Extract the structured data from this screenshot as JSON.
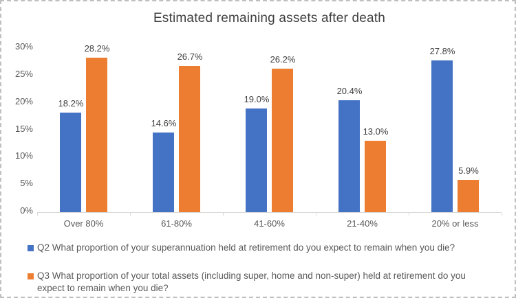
{
  "chart_data": {
    "type": "bar",
    "title": "Estimated remaining assets after death",
    "categories": [
      "Over 80%",
      "61-80%",
      "41-60%",
      "21-40%",
      "20% or less"
    ],
    "series": [
      {
        "name": "Q2 What proportion of your superannuation held at retirement do you expect to remain when you die?",
        "color": "#4472c4",
        "values": [
          18.2,
          14.6,
          19.0,
          20.4,
          27.8
        ],
        "labels": [
          "18.2%",
          "14.6%",
          "19.0%",
          "20.4%",
          "27.8%"
        ]
      },
      {
        "name": "Q3 What proportion of your total assets (including super, home and non-super) held at retirement do you expect to remain when you die?",
        "color": "#ed7d31",
        "values": [
          28.2,
          26.7,
          26.2,
          13.0,
          5.9
        ],
        "labels": [
          "28.2%",
          "26.7%",
          "26.2%",
          "13.0%",
          "5.9%"
        ]
      }
    ],
    "y_axis": {
      "min": 0,
      "max": 30,
      "step": 5,
      "tick_labels": [
        "0%",
        "5%",
        "10%",
        "15%",
        "20%",
        "25%",
        "30%"
      ]
    },
    "axis_color": "#d9d9d9",
    "grid": false,
    "legend_position": "bottom"
  }
}
